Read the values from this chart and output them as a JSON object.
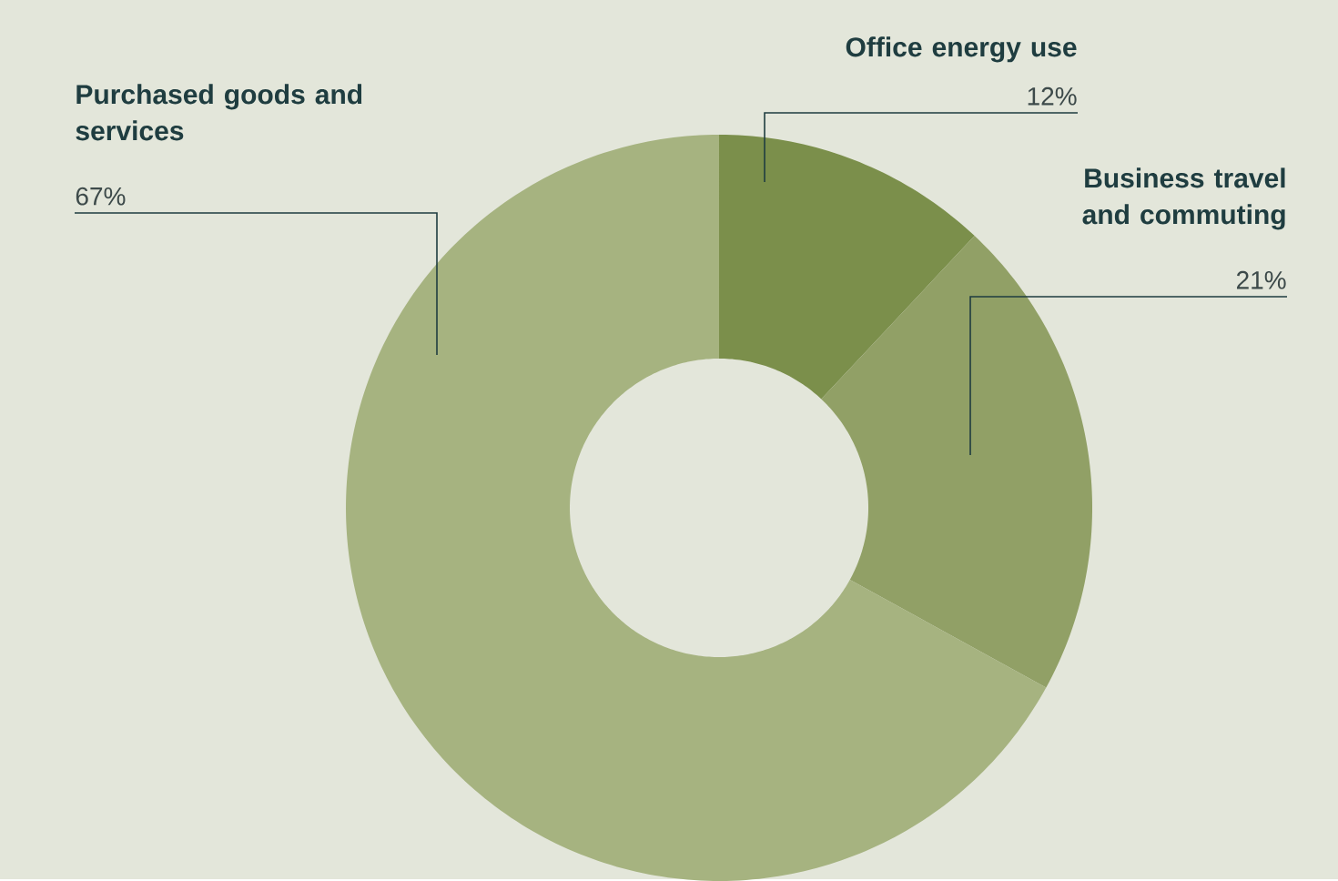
{
  "chart_data": {
    "type": "donut",
    "categories": [
      "Office energy use",
      "Business travel and commuting",
      "Purchased goods and services"
    ],
    "values": [
      12,
      21,
      67
    ],
    "colors": [
      "#7b8f4b",
      "#91a066",
      "#a6b380"
    ],
    "value_labels": [
      "12%",
      "21%",
      "67%"
    ]
  }
}
